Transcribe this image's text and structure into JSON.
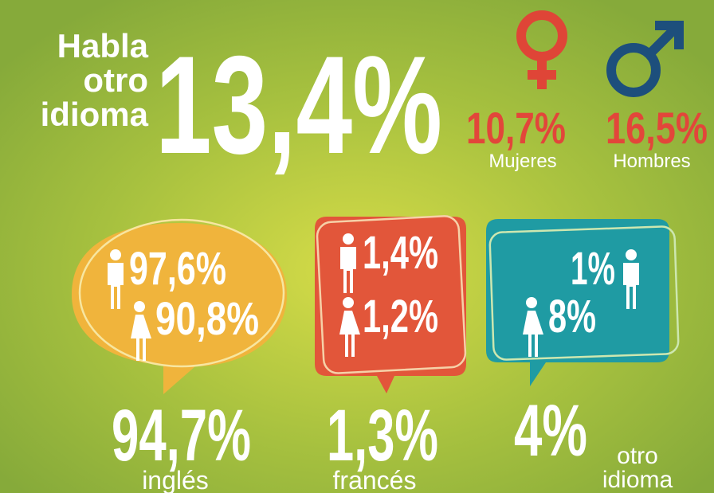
{
  "header": {
    "lines": [
      "Habla",
      "otro",
      "idioma"
    ],
    "total": "13,4%"
  },
  "gender": {
    "women": {
      "value": "10,7%",
      "label": "Mujeres"
    },
    "men": {
      "value": "16,5%",
      "label": "Hombres"
    }
  },
  "languages": [
    {
      "men": "97,6%",
      "women": "90,8%",
      "total": "94,7%",
      "label": [
        "inglés"
      ]
    },
    {
      "men": "1,4%",
      "women": "1,2%",
      "total": "1,3%",
      "label": [
        "francés"
      ]
    },
    {
      "men": "1%",
      "women": "8%",
      "total": "4%",
      "label": [
        "otro",
        "idioma"
      ]
    }
  ]
}
